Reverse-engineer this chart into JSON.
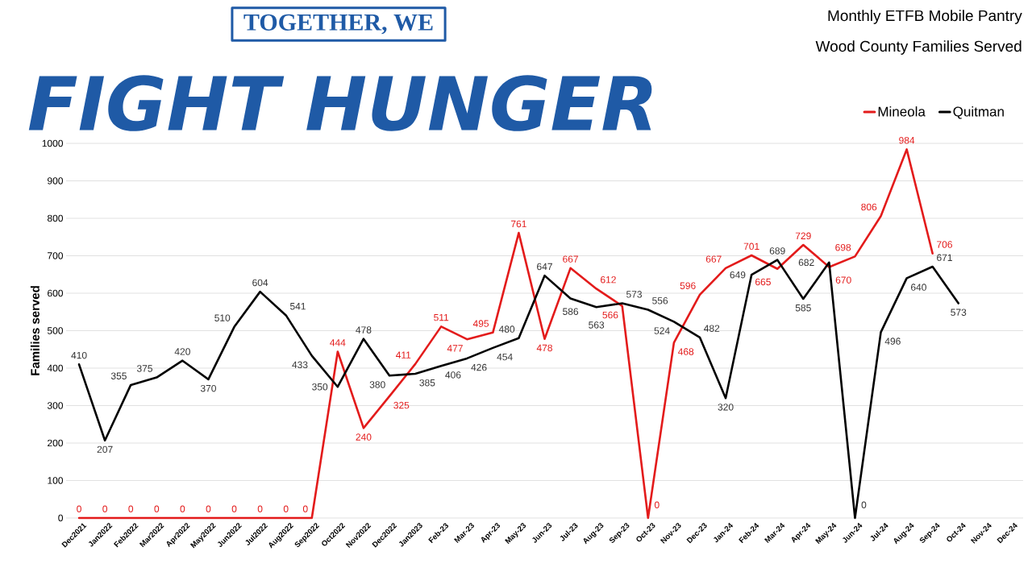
{
  "chart_data": {
    "type": "line",
    "title": "Monthly ETFB Mobile Pantry",
    "subtitle": "Wood County Families Served",
    "ylabel": "Families served",
    "annotations": [
      "TOGETHER, WE",
      "FIGHT HUNGER"
    ],
    "categories": [
      "Dec2021",
      "Jan2022",
      "Feb2022",
      "Mar2022",
      "Apr2022",
      "May2022",
      "Jun2022",
      "Jul2022",
      "Aug2022",
      "Sep2022",
      "Oct2022",
      "Nov2022",
      "Dec2022",
      "Jan2023",
      "Feb-23",
      "Mar-23",
      "Apr-23",
      "May-23",
      "Jun-23",
      "Jul-23",
      "Aug-23",
      "Sep-23",
      "Oct-23",
      "Nov-23",
      "Dec-23",
      "Jan-24",
      "Feb-24",
      "Mar-24",
      "Apr-24",
      "May-24",
      "Jun-24",
      "Jul-24",
      "Aug-24",
      "Sep-24",
      "Oct-24",
      "Nov-24",
      "Dec-24"
    ],
    "series": [
      {
        "name": "Mineola",
        "color": "#e31b1b",
        "values": [
          0,
          0,
          0,
          0,
          0,
          0,
          0,
          0,
          0,
          0,
          444,
          240,
          325,
          411,
          511,
          477,
          495,
          761,
          478,
          667,
          612,
          566,
          0,
          468,
          596,
          667,
          701,
          665,
          729,
          670,
          698,
          806,
          984,
          706,
          null,
          null,
          null
        ]
      },
      {
        "name": "Quitman",
        "color": "#000000",
        "values": [
          410,
          207,
          355,
          375,
          420,
          370,
          510,
          604,
          541,
          433,
          350,
          478,
          380,
          385,
          406,
          426,
          454,
          480,
          647,
          586,
          563,
          573,
          556,
          524,
          482,
          320,
          649,
          689,
          585,
          682,
          0,
          496,
          640,
          671,
          573,
          null,
          null
        ]
      }
    ],
    "ylim": [
      0,
      1000
    ],
    "yticks": [
      0,
      100,
      200,
      300,
      400,
      500,
      600,
      700,
      800,
      900,
      1000
    ],
    "grid": "y",
    "legend": "top right",
    "data_labels": true,
    "marker": "none",
    "line_style": "solid"
  }
}
